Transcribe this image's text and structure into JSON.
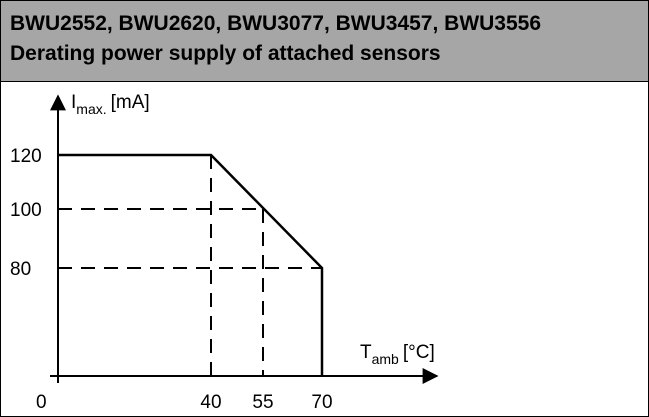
{
  "header": {
    "line1": "BWU2552, BWU2620, BWU3077, BWU3457, BWU3556",
    "line2": "Derating power supply of attached sensors"
  },
  "chart_data": {
    "type": "line",
    "title": "Derating power supply of attached sensors",
    "ylabel_main": "I",
    "ylabel_sub": "max.",
    "ylabel_unit": "[mA]",
    "xlabel_main": "T",
    "xlabel_sub": "amb",
    "xlabel_unit": "[°C]",
    "origin_label": "0",
    "x_ticks": [
      "40",
      "55",
      "70"
    ],
    "y_ticks": [
      "120",
      "100",
      "80"
    ],
    "series": [
      {
        "x": [
          0,
          40,
          70,
          70
        ],
        "y": [
          120,
          120,
          80,
          0
        ]
      }
    ],
    "reference_lines": [
      {
        "x": 40,
        "y": 120
      },
      {
        "x": 55,
        "y": 100
      },
      {
        "x": 70,
        "y": 80
      }
    ],
    "xlim": [
      0,
      70
    ],
    "ylim": [
      0,
      120
    ],
    "grid": false
  }
}
